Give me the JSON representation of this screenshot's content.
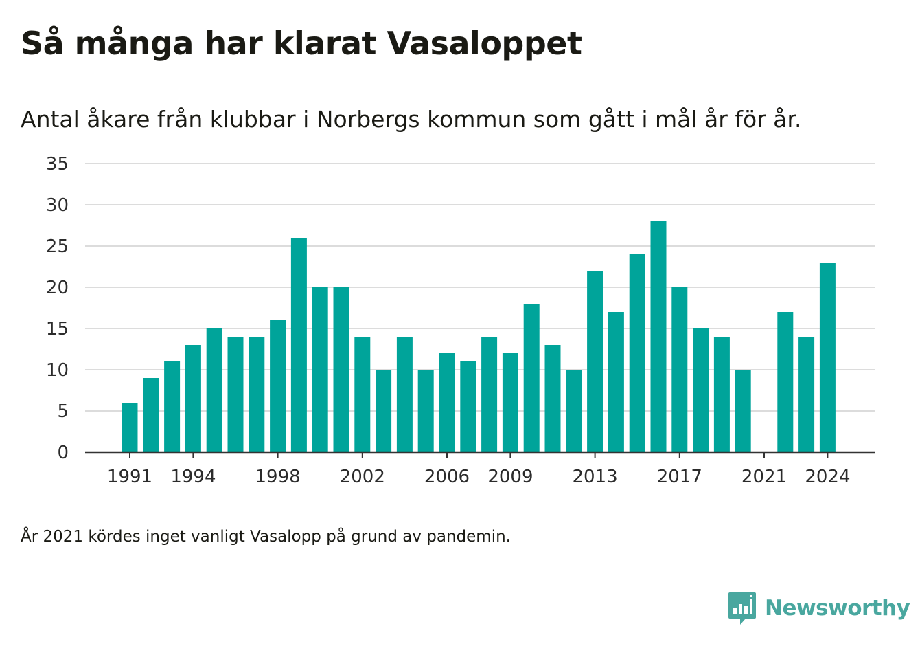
{
  "header": {
    "title": "Så många har klarat Vasaloppet",
    "subtitle": "Antal åkare från klubbar i Norbergs kommun som gått i mål år för år."
  },
  "footnote": "År 2021 kördes inget vanligt Vasalopp på grund av pandemin.",
  "brand": {
    "name": "Newsworthy",
    "icon": "newsworthy-logo-icon",
    "color": "#49a79f"
  },
  "colors": {
    "bar": "#00a49a",
    "grid": "#dcdcdc",
    "axis": "#333333",
    "text": "#1a1a14"
  },
  "chart_data": {
    "type": "bar",
    "categories": [
      1991,
      1992,
      1993,
      1994,
      1995,
      1996,
      1997,
      1998,
      1999,
      2000,
      2001,
      2002,
      2003,
      2004,
      2005,
      2006,
      2007,
      2008,
      2009,
      2010,
      2011,
      2012,
      2013,
      2014,
      2015,
      2016,
      2017,
      2018,
      2019,
      2020,
      2021,
      2022,
      2023,
      2024
    ],
    "values": [
      6,
      9,
      11,
      13,
      15,
      14,
      14,
      16,
      26,
      20,
      20,
      14,
      10,
      14,
      10,
      12,
      11,
      14,
      12,
      18,
      13,
      10,
      22,
      17,
      24,
      28,
      20,
      15,
      14,
      10,
      null,
      17,
      14,
      23
    ],
    "x_tick_labels": [
      1991,
      1994,
      1998,
      2002,
      2006,
      2009,
      2013,
      2017,
      2021,
      2024
    ],
    "y_ticks": [
      0,
      5,
      10,
      15,
      20,
      25,
      30,
      35
    ],
    "ylim": [
      0,
      35
    ],
    "grid": true,
    "legend": "none",
    "xlabel": "",
    "ylabel": ""
  }
}
